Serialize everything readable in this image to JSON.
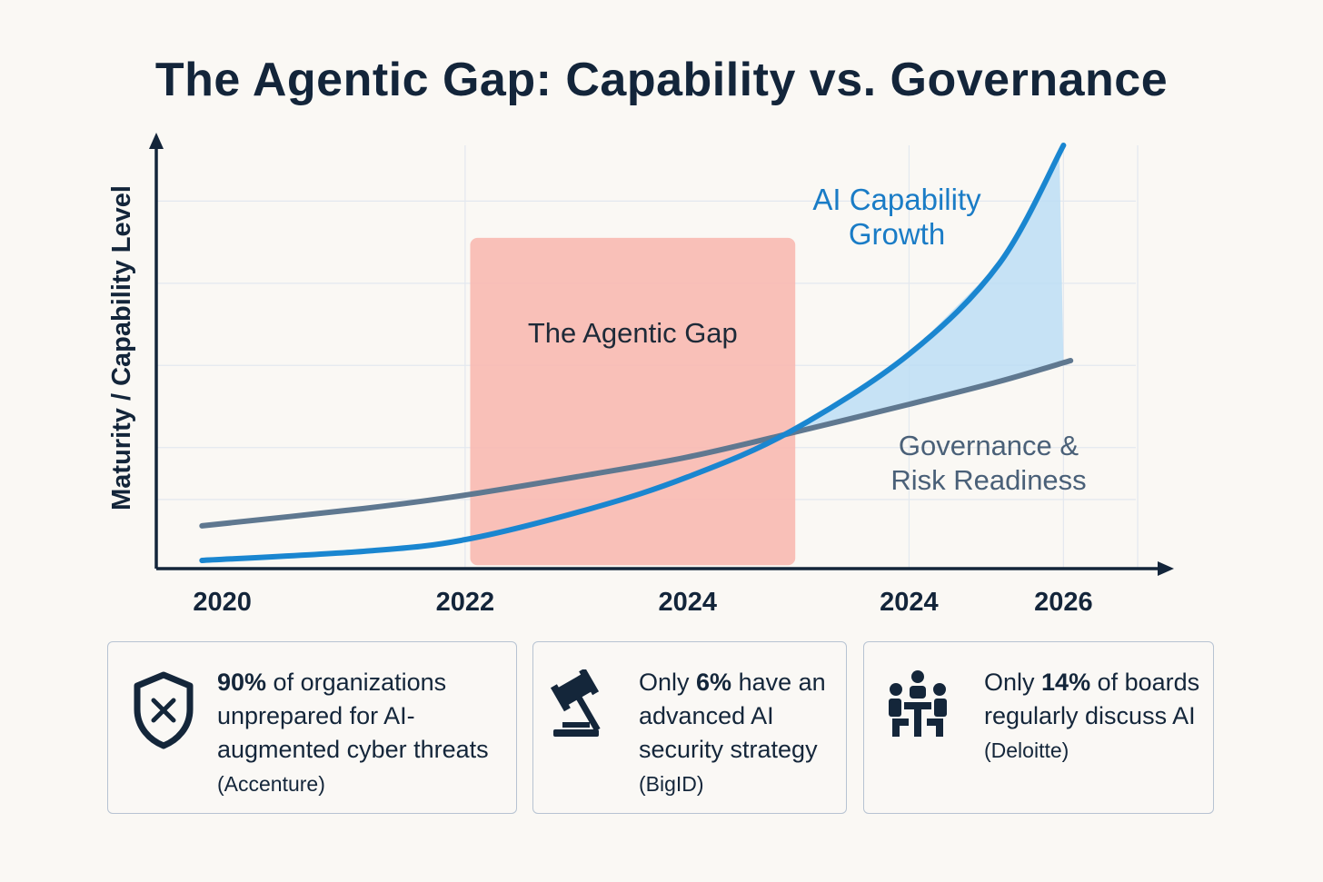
{
  "title": "The Agentic Gap: Capability vs. Governance",
  "chart_data": {
    "type": "line",
    "title": "The Agentic Gap: Capability vs. Governance",
    "ylabel": "Maturity / Capability Level",
    "xlabel": "",
    "xlim": [
      0,
      10
    ],
    "ylim": [
      0,
      10
    ],
    "grid": true,
    "x_ticks": [
      {
        "value": 0.65,
        "label": "2020"
      },
      {
        "value": 3.04,
        "label": "2022"
      },
      {
        "value": 5.23,
        "label": "2024"
      },
      {
        "value": 7.41,
        "label": "2024"
      },
      {
        "value": 8.93,
        "label": "2026"
      }
    ],
    "grid_x": [
      3.04,
      7.41,
      8.93,
      9.66
    ],
    "grid_y": [
      1.6,
      2.8,
      4.7,
      6.6,
      8.5
    ],
    "series": [
      {
        "name": "AI Capability Growth",
        "color": "#1a86d0",
        "points": [
          [
            0.45,
            0.19
          ],
          [
            2.04,
            0.4
          ],
          [
            3.04,
            0.67
          ],
          [
            4.28,
            1.39
          ],
          [
            5.23,
            2.12
          ],
          [
            6.24,
            3.17
          ],
          [
            7.41,
            4.96
          ],
          [
            8.3,
            7.06
          ],
          [
            8.93,
            9.79
          ]
        ]
      },
      {
        "name": "Governance & Risk Readiness",
        "color": "#5f7890",
        "points": [
          [
            0.45,
            0.99
          ],
          [
            2.04,
            1.39
          ],
          [
            3.04,
            1.7
          ],
          [
            4.28,
            2.18
          ],
          [
            5.23,
            2.58
          ],
          [
            6.24,
            3.13
          ],
          [
            7.41,
            3.8
          ],
          [
            8.3,
            4.33
          ],
          [
            9.0,
            4.81
          ]
        ]
      }
    ],
    "annotations": {
      "gap_region": {
        "label": "The Agentic Gap",
        "x": [
          3.09,
          6.29
        ],
        "y": [
          0.08,
          7.65
        ],
        "color": "#f8b9b1"
      },
      "capability_label_lines": [
        "AI Capability",
        "Growth"
      ],
      "governance_label_lines": [
        "Governance &",
        "Risk Readiness"
      ],
      "gap_fill_color": "#b9dcf5"
    }
  },
  "cards": [
    {
      "icon": "shield-x-icon",
      "bold": "90%",
      "rest": " of organizations unprepared for AI-augmented cyber threats",
      "source": "(Accenture)"
    },
    {
      "icon": "gavel-icon",
      "pre": "Only ",
      "bold": "6%",
      "rest": " have an advanced AI security strategy",
      "source": "(BigID)"
    },
    {
      "icon": "boardroom-people-icon",
      "pre": "Only ",
      "bold": "14%",
      "rest": " of boards regularly discuss AI",
      "source": "(Deloitte)"
    }
  ]
}
